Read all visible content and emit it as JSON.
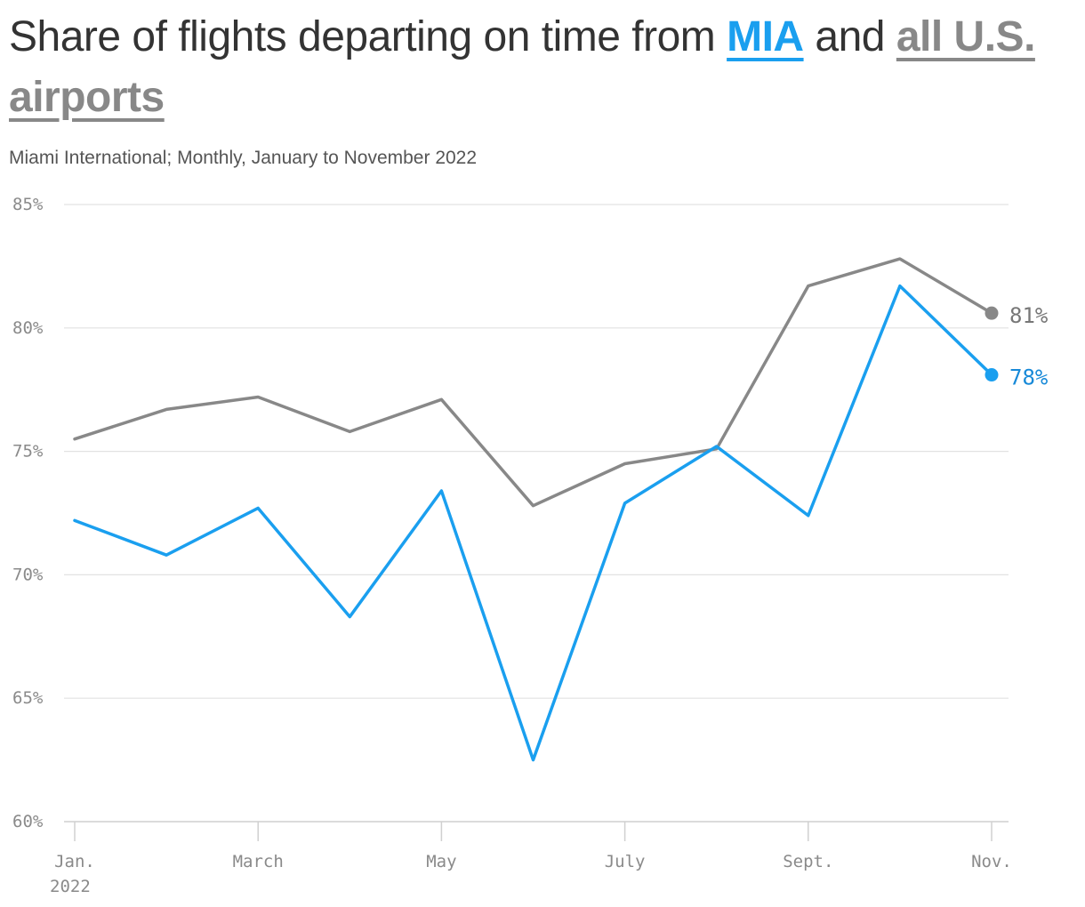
{
  "chart_data": {
    "type": "line",
    "title_parts": [
      "Share of flights departing on time from ",
      "MIA",
      " and ",
      "all U.S. airports"
    ],
    "subtitle": "Miami International; Monthly, January to November 2022",
    "x": [
      "2022-01",
      "2022-02",
      "2022-03",
      "2022-04",
      "2022-05",
      "2022-06",
      "2022-07",
      "2022-08",
      "2022-09",
      "2022-10",
      "2022-11"
    ],
    "x_tick_labels": [
      {
        "month": 0,
        "lines": [
          "Jan.",
          "2022"
        ]
      },
      {
        "month": 2,
        "lines": [
          "March"
        ]
      },
      {
        "month": 4,
        "lines": [
          "May"
        ]
      },
      {
        "month": 6,
        "lines": [
          "July"
        ]
      },
      {
        "month": 8,
        "lines": [
          "Sept."
        ]
      },
      {
        "month": 10,
        "lines": [
          "Nov."
        ]
      }
    ],
    "y_ticks": [
      60,
      65,
      70,
      75,
      80,
      85
    ],
    "y_tick_labels": [
      "60%",
      "65%",
      "70%",
      "75%",
      "80%",
      "85%"
    ],
    "ylim": [
      60,
      85
    ],
    "grid": true,
    "series": [
      {
        "name": "MIA",
        "color": "#1a9fef",
        "end_label": "78%",
        "end_label_color": "#1789d8",
        "values": [
          72.2,
          70.8,
          72.7,
          68.3,
          73.4,
          62.5,
          72.9,
          75.2,
          72.4,
          81.7,
          78.1
        ]
      },
      {
        "name": "all U.S. airports",
        "color": "#888888",
        "end_label": "81%",
        "end_label_color": "#777777",
        "values": [
          75.5,
          76.7,
          77.2,
          75.8,
          77.1,
          72.8,
          74.5,
          75.1,
          81.7,
          82.8,
          80.6
        ]
      }
    ]
  }
}
